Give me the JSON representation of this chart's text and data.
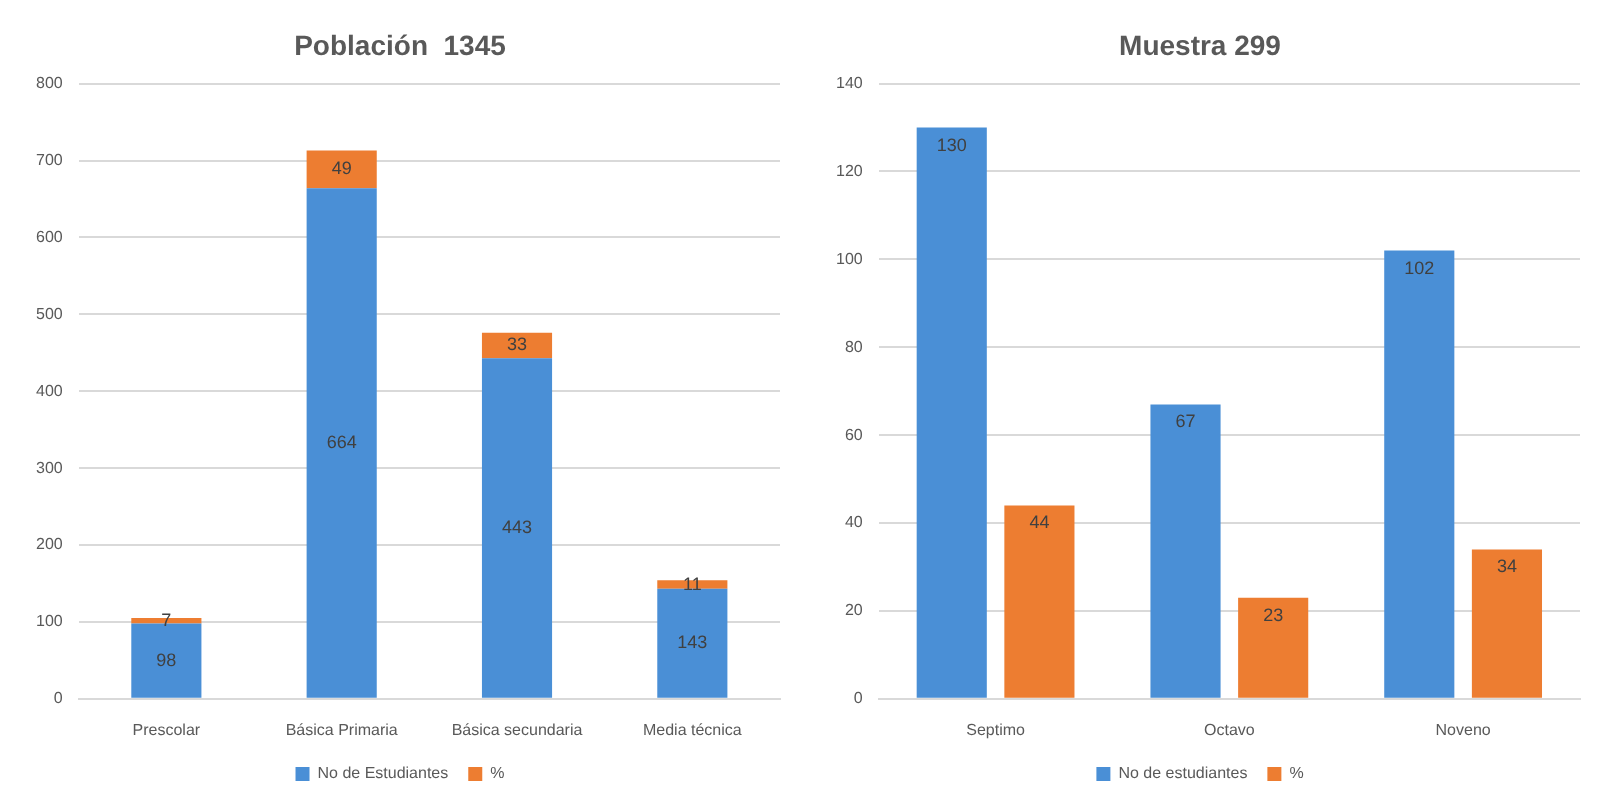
{
  "chart_data": [
    {
      "type": "bar",
      "title": "Población  1345",
      "categories": [
        "Prescolar",
        "Básica Primaria",
        "Básica secundaria",
        "Media técnica"
      ],
      "stacked": true,
      "series": [
        {
          "name": "No de Estudiantes",
          "color": "#4a8fd6",
          "values": [
            98,
            664,
            443,
            143
          ]
        },
        {
          "name": "%",
          "color": "#ed7d31",
          "values": [
            7,
            49,
            33,
            11
          ]
        }
      ],
      "ylim": [
        0,
        800
      ],
      "yticks": [
        0,
        100,
        200,
        300,
        400,
        500,
        600,
        700,
        800
      ],
      "grid": "y",
      "legend": "bottom",
      "data_labels": true
    },
    {
      "type": "bar",
      "title": "Muestra 299",
      "categories": [
        "Septimo",
        "Octavo",
        "Noveno"
      ],
      "series": [
        {
          "name": "No de estudiantes",
          "color": "#4a8fd6",
          "values": [
            130,
            67,
            102
          ]
        },
        {
          "name": "%",
          "color": "#ed7d31",
          "values": [
            44,
            23,
            34
          ]
        }
      ],
      "ylim": [
        0,
        140
      ],
      "yticks": [
        0,
        20,
        40,
        60,
        80,
        100,
        120,
        140
      ],
      "grid": "y",
      "legend": "bottom",
      "data_labels": true
    }
  ]
}
